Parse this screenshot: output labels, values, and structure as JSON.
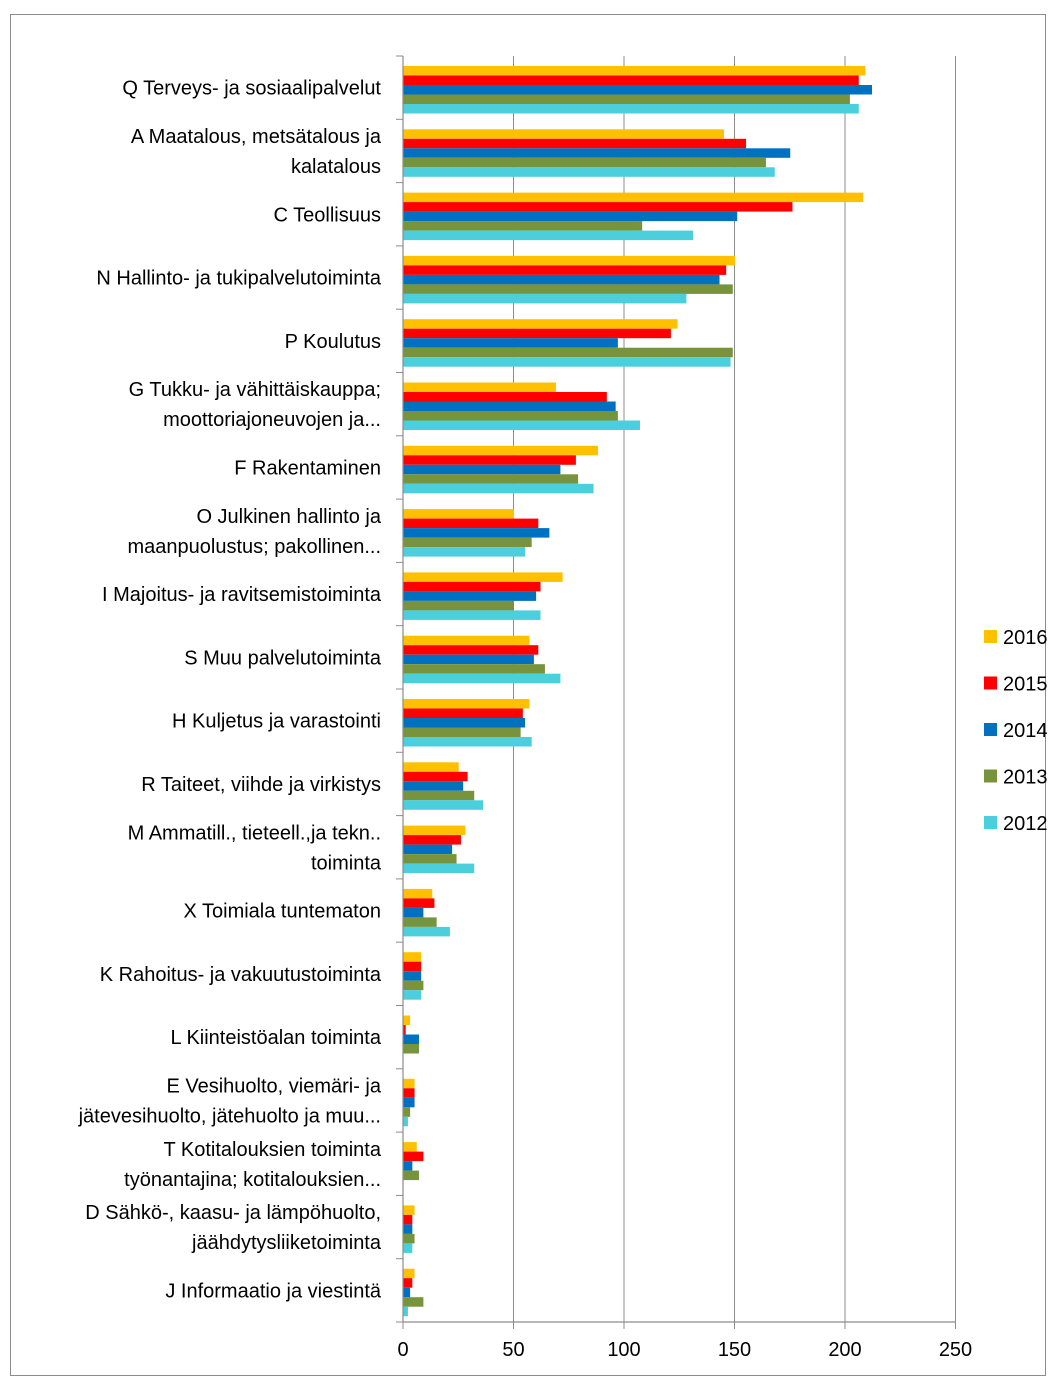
{
  "chart_data": {
    "type": "bar",
    "orientation": "horizontal",
    "title": "",
    "xlabel": "",
    "ylabel": "",
    "xlim": [
      0,
      250
    ],
    "x_ticks": [
      0,
      50,
      100,
      150,
      200,
      250
    ],
    "grid": "vertical",
    "legend_position": "right",
    "categories": [
      [
        "Q Terveys- ja sosiaalipalvelut"
      ],
      [
        "A Maatalous, metsätalous ja",
        "kalatalous"
      ],
      [
        "C Teollisuus"
      ],
      [
        "N Hallinto- ja tukipalvelutoiminta"
      ],
      [
        "P Koulutus"
      ],
      [
        "G Tukku- ja vähittäiskauppa;",
        "moottoriajoneuvojen ja..."
      ],
      [
        "F Rakentaminen"
      ],
      [
        "O Julkinen hallinto ja",
        "maanpuolustus; pakollinen..."
      ],
      [
        "I Majoitus- ja ravitsemistoiminta"
      ],
      [
        "S Muu palvelutoiminta"
      ],
      [
        "H Kuljetus ja varastointi"
      ],
      [
        "R Taiteet, viihde ja virkistys"
      ],
      [
        "M Ammatill., tieteell.,ja tekn..",
        "toiminta"
      ],
      [
        "X Toimiala tuntematon"
      ],
      [
        "K Rahoitus- ja vakuutustoiminta"
      ],
      [
        "L Kiinteistöalan toiminta"
      ],
      [
        "E Vesihuolto, viemäri- ja",
        "jätevesihuolto, jätehuolto ja muu..."
      ],
      [
        "T Kotitalouksien toiminta",
        "työnantajina; kotitalouksien..."
      ],
      [
        "D Sähkö-, kaasu- ja lämpöhuolto,",
        "jäähdytysliiketoiminta"
      ],
      [
        "J Informaatio ja viestintä"
      ]
    ],
    "series": [
      {
        "name": "2016",
        "color": "#FFC000",
        "values": [
          209,
          145,
          208,
          150,
          124,
          69,
          88,
          50,
          72,
          57,
          57,
          25,
          28,
          13,
          8,
          3,
          5,
          6,
          5,
          5
        ]
      },
      {
        "name": "2015",
        "color": "#FF0000",
        "values": [
          206,
          155,
          176,
          146,
          121,
          92,
          78,
          61,
          62,
          61,
          54,
          29,
          26,
          14,
          8,
          1,
          5,
          9,
          4,
          4
        ]
      },
      {
        "name": "2014",
        "color": "#0070C0",
        "values": [
          212,
          175,
          151,
          143,
          97,
          96,
          71,
          66,
          60,
          59,
          55,
          27,
          22,
          9,
          8,
          7,
          5,
          4,
          4,
          3
        ]
      },
      {
        "name": "2013",
        "color": "#77933C",
        "values": [
          202,
          164,
          108,
          149,
          149,
          97,
          79,
          58,
          50,
          64,
          53,
          32,
          24,
          15,
          9,
          7,
          3,
          7,
          5,
          9
        ]
      },
      {
        "name": "2012",
        "color": "#4BCFDD",
        "values": [
          206,
          168,
          131,
          128,
          148,
          107,
          86,
          55,
          62,
          71,
          58,
          36,
          32,
          21,
          8,
          0,
          2,
          0,
          4,
          2
        ]
      }
    ]
  }
}
